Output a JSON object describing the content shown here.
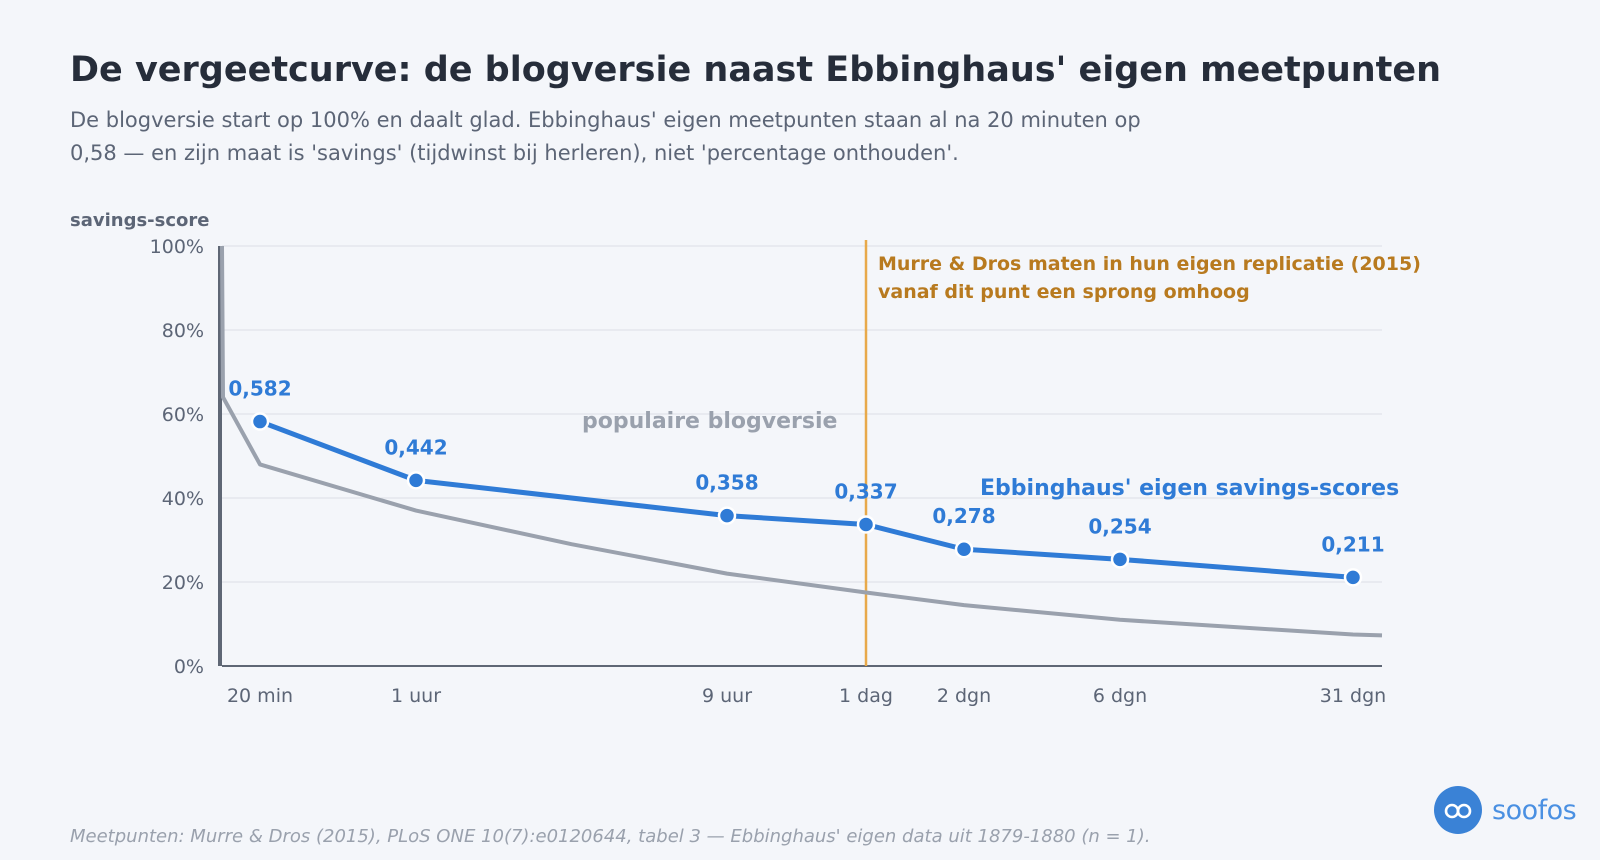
{
  "header": {
    "title": "De vergeetcurve: de blogversie naast Ebbinghaus' eigen meetpunten",
    "subtitle_line1": "De blogversie start op 100% en daalt glad. Ebbinghaus' eigen meetpunten staan al na 20 minuten op",
    "subtitle_line2": "0,58 — en zijn maat is 'savings' (tijdwinst bij herleren), niet 'percentage onthouden'."
  },
  "footer": {
    "source": "Meetpunten: Murre & Dros (2015), PLoS ONE 10(7):e0120644, tabel 3 — Ebbinghaus' eigen data uit 1879-1880 (n = 1).",
    "logo_text": "soofos"
  },
  "colors": {
    "blog": "#9aa1ad",
    "ebbinghaus": "#2f7bd6",
    "annotation": "#e8a94a",
    "annotation_text": "#b87a1f",
    "axis": "#5f6775",
    "grid": "#e3e6ec"
  },
  "chart_data": {
    "type": "line",
    "ylabel": "savings-score",
    "ylim": [
      0,
      100
    ],
    "yticks": [
      "0%",
      "20%",
      "40%",
      "60%",
      "80%",
      "100%"
    ],
    "ytick_values": [
      0,
      20,
      40,
      60,
      80,
      100
    ],
    "x_scale": "log (hours)",
    "x_ticks": [
      {
        "label": "20 min",
        "hours": 0.333
      },
      {
        "label": "1 uur",
        "hours": 1
      },
      {
        "label": "9 uur",
        "hours": 9
      },
      {
        "label": "1 dag",
        "hours": 24
      },
      {
        "label": "2 dgn",
        "hours": 48
      },
      {
        "label": "6 dgn",
        "hours": 144
      },
      {
        "label": "31 dgn",
        "hours": 744
      }
    ],
    "series": [
      {
        "name": "populaire blogversie",
        "points": [
          {
            "hours": 0.0,
            "value": 100
          },
          {
            "hours": 0.01,
            "value": 64
          },
          {
            "hours": 0.333,
            "value": 48
          },
          {
            "hours": 1,
            "value": 37
          },
          {
            "hours": 3,
            "value": 29
          },
          {
            "hours": 9,
            "value": 22
          },
          {
            "hours": 24,
            "value": 17.5
          },
          {
            "hours": 48,
            "value": 14.5
          },
          {
            "hours": 144,
            "value": 11
          },
          {
            "hours": 744,
            "value": 7.5
          },
          {
            "hours": 900,
            "value": 7.3
          }
        ]
      },
      {
        "name": "Ebbinghaus' eigen savings-scores",
        "points": [
          {
            "hours": 0.333,
            "value": 58.2,
            "label": "0,582"
          },
          {
            "hours": 1,
            "value": 44.2,
            "label": "0,442"
          },
          {
            "hours": 9,
            "value": 35.8,
            "label": "0,358"
          },
          {
            "hours": 24,
            "value": 33.7,
            "label": "0,337"
          },
          {
            "hours": 48,
            "value": 27.8,
            "label": "0,278"
          },
          {
            "hours": 144,
            "value": 25.4,
            "label": "0,254"
          },
          {
            "hours": 744,
            "value": 21.1,
            "label": "0,211"
          }
        ]
      }
    ],
    "annotation": {
      "at": "1 dag",
      "line1": "Murre & Dros maten in hun eigen replicatie (2015)",
      "line2": "vanaf dit punt een sprong omhoog"
    }
  }
}
